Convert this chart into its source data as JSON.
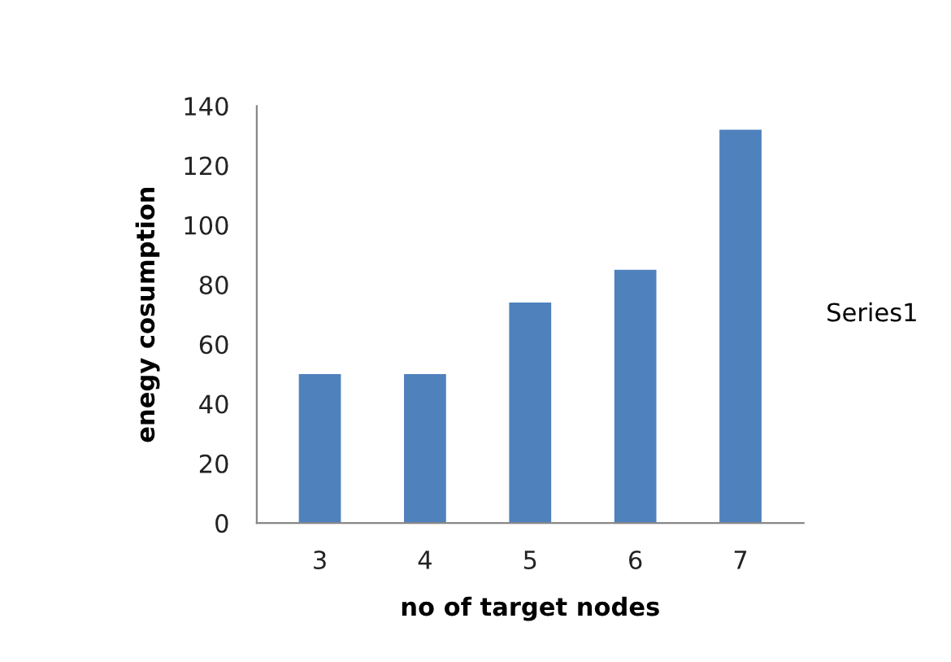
{
  "chart_data": {
    "type": "bar",
    "xlabel": "no of target nodes",
    "ylabel": "enegy cosumption",
    "categories": [
      "3",
      "4",
      "5",
      "6",
      "7"
    ],
    "series": [
      {
        "name": "Series1",
        "color": "#4f81bd",
        "values": [
          50,
          50,
          74,
          85,
          132
        ]
      }
    ],
    "ylim": [
      0,
      140
    ],
    "yticks": [
      0,
      20,
      40,
      60,
      80,
      100,
      120,
      140
    ],
    "grid": false,
    "legend": "right"
  }
}
